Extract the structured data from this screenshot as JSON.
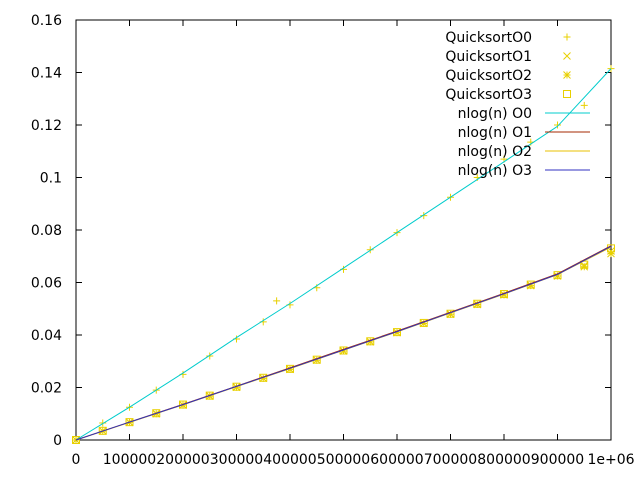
{
  "chart_data": {
    "type": "scatter",
    "title": "",
    "xlabel": "",
    "ylabel": "",
    "xlim": [
      0,
      1000000
    ],
    "ylim": [
      0,
      0.16
    ],
    "x_ticks": [
      0,
      100000,
      200000,
      300000,
      400000,
      500000,
      600000,
      700000,
      800000,
      900000,
      1000000
    ],
    "x_tick_labels": [
      "0",
      "100000",
      "200000",
      "300000",
      "400000",
      "500000",
      "600000",
      "700000",
      "800000",
      "900000",
      "1e+06"
    ],
    "y_ticks": [
      0,
      0.02,
      0.04,
      0.06,
      0.08,
      0.1,
      0.12,
      0.14,
      0.16
    ],
    "y_tick_labels": [
      "0",
      "0.02",
      "0.04",
      "0.06",
      "0.08",
      "0.1",
      "0.12",
      "0.14",
      "0.16"
    ],
    "legend_position": "top-right",
    "grid": false,
    "series": [
      {
        "name": "QuicksortO0",
        "kind": "points",
        "marker": "plus",
        "color": "#e8d000",
        "x": [
          0,
          50000,
          100000,
          150000,
          200000,
          250000,
          300000,
          350000,
          375000,
          400000,
          450000,
          500000,
          550000,
          600000,
          650000,
          700000,
          750000,
          800000,
          850000,
          900000,
          950000,
          1000000
        ],
        "y": [
          0,
          0.0065,
          0.0125,
          0.019,
          0.025,
          0.032,
          0.0385,
          0.045,
          0.053,
          0.0515,
          0.058,
          0.065,
          0.0725,
          0.079,
          0.0855,
          0.0925,
          0.1,
          0.107,
          0.1135,
          0.12,
          0.1275,
          0.1415
        ]
      },
      {
        "name": "QuicksortO1",
        "kind": "points",
        "marker": "cross",
        "color": "#e8d000",
        "x": [
          0,
          50000,
          100000,
          150000,
          200000,
          250000,
          300000,
          350000,
          400000,
          450000,
          500000,
          550000,
          600000,
          650000,
          700000,
          750000,
          800000,
          850000,
          900000,
          950000,
          1000000
        ],
        "y": [
          0,
          0.0035,
          0.0068,
          0.0101,
          0.0134,
          0.0168,
          0.0202,
          0.0236,
          0.027,
          0.0305,
          0.034,
          0.0375,
          0.041,
          0.0445,
          0.048,
          0.0518,
          0.0555,
          0.059,
          0.0625,
          0.0665,
          0.072
        ]
      },
      {
        "name": "QuicksortO2",
        "kind": "points",
        "marker": "star",
        "color": "#e8d000",
        "x": [
          0,
          50000,
          100000,
          150000,
          200000,
          250000,
          300000,
          350000,
          400000,
          450000,
          500000,
          550000,
          600000,
          650000,
          700000,
          750000,
          800000,
          850000,
          900000,
          950000,
          1000000
        ],
        "y": [
          0,
          0.0034,
          0.0067,
          0.01,
          0.0133,
          0.0167,
          0.0201,
          0.0235,
          0.0269,
          0.0304,
          0.0339,
          0.0374,
          0.0409,
          0.0444,
          0.0479,
          0.0516,
          0.0553,
          0.0588,
          0.0625,
          0.066,
          0.071
        ]
      },
      {
        "name": "QuicksortO3",
        "kind": "points",
        "marker": "square",
        "color": "#e8d000",
        "x": [
          0,
          50000,
          100000,
          150000,
          200000,
          250000,
          300000,
          350000,
          400000,
          450000,
          500000,
          550000,
          600000,
          650000,
          700000,
          750000,
          800000,
          850000,
          900000,
          950000,
          1000000
        ],
        "y": [
          0,
          0.0035,
          0.0068,
          0.0102,
          0.0135,
          0.0169,
          0.0203,
          0.0237,
          0.0271,
          0.0306,
          0.0341,
          0.0376,
          0.0411,
          0.0446,
          0.0481,
          0.0519,
          0.0556,
          0.0592,
          0.0628,
          0.0668,
          0.073
        ]
      },
      {
        "name": "nlog(n) O0",
        "kind": "line",
        "color": "#00cccc",
        "x": [
          0,
          100000,
          200000,
          300000,
          400000,
          500000,
          600000,
          700000,
          800000,
          900000,
          1000000
        ],
        "y": [
          0,
          0.0125,
          0.0255,
          0.039,
          0.052,
          0.0655,
          0.079,
          0.0925,
          0.106,
          0.1195,
          0.1415
        ]
      },
      {
        "name": "nlog(n) O1",
        "kind": "line",
        "color": "#a52a00",
        "x": [
          0,
          100000,
          200000,
          300000,
          400000,
          500000,
          600000,
          700000,
          800000,
          900000,
          1000000
        ],
        "y": [
          0,
          0.0068,
          0.0136,
          0.0205,
          0.0275,
          0.0345,
          0.0415,
          0.0487,
          0.0559,
          0.0633,
          0.074
        ]
      },
      {
        "name": "nlog(n) O2",
        "kind": "line",
        "color": "#e8c000",
        "x": [
          0,
          100000,
          200000,
          300000,
          400000,
          500000,
          600000,
          700000,
          800000,
          900000,
          1000000
        ],
        "y": [
          0,
          0.0067,
          0.0134,
          0.0203,
          0.0272,
          0.0342,
          0.0412,
          0.0484,
          0.0556,
          0.063,
          0.0735
        ]
      },
      {
        "name": "nlog(n) O3",
        "kind": "line",
        "color": "#3030c0",
        "x": [
          0,
          100000,
          200000,
          300000,
          400000,
          500000,
          600000,
          700000,
          800000,
          900000,
          1000000
        ],
        "y": [
          0,
          0.0068,
          0.0135,
          0.0204,
          0.0273,
          0.0343,
          0.0413,
          0.0485,
          0.0557,
          0.0631,
          0.0738
        ]
      }
    ]
  }
}
